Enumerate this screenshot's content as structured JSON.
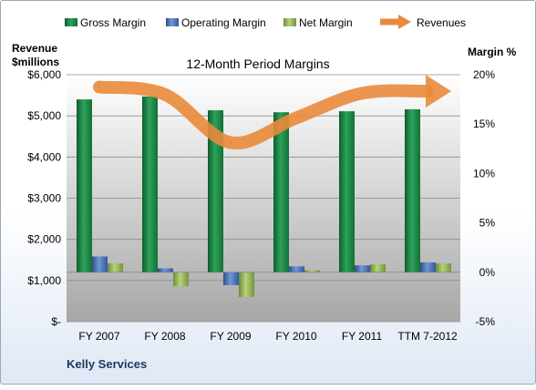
{
  "chart_data": {
    "type": "bar",
    "title": "12-Month Period Margins",
    "company": "Kelly Services",
    "categories": [
      "FY 2007",
      "FY 2008",
      "FY 2009",
      "FY 2010",
      "FY 2011",
      "TTM 7-2012"
    ],
    "series": [
      {
        "name": "Gross Margin",
        "axis": "right",
        "color": "#1e8a47",
        "values": [
          17.5,
          17.8,
          16.4,
          16.2,
          16.3,
          16.5
        ]
      },
      {
        "name": "Operating Margin",
        "axis": "right",
        "color": "#4a76b8",
        "values": [
          1.6,
          0.4,
          -1.3,
          0.6,
          0.7,
          1.0
        ]
      },
      {
        "name": "Net Margin",
        "axis": "right",
        "color": "#98b85a",
        "values": [
          0.9,
          -1.4,
          -2.5,
          0.2,
          0.8,
          0.9
        ]
      },
      {
        "name": "Revenues",
        "axis": "left",
        "color": "#e98a3c",
        "values": [
          5700,
          5520,
          4350,
          4950,
          5550,
          5600
        ]
      }
    ],
    "left_axis": {
      "label_lines": [
        "Revenue",
        "$millions"
      ],
      "ylim": [
        0,
        6000
      ],
      "ticks": [
        "$-",
        "$1,000",
        "$2,000",
        "$3,000",
        "$4,000",
        "$5,000",
        "$6,000"
      ]
    },
    "right_axis": {
      "label": "Margin %",
      "ylim": [
        -5,
        20
      ],
      "ticks": [
        "-5%",
        "0%",
        "5%",
        "10%",
        "15%",
        "20%"
      ]
    },
    "grid": true,
    "legend": "top"
  }
}
